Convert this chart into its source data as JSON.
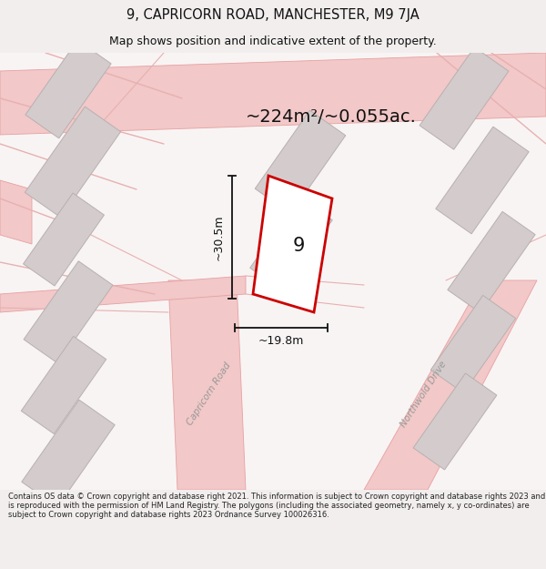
{
  "title": "9, CAPRICORN ROAD, MANCHESTER, M9 7JA",
  "subtitle": "Map shows position and indicative extent of the property.",
  "area_text": "~224m²/~0.055ac.",
  "dim_h": "~30.5m",
  "dim_w": "~19.8m",
  "property_number": "9",
  "footer": "Contains OS data © Crown copyright and database right 2021. This information is subject to Crown copyright and database rights 2023 and is reproduced with the permission of HM Land Registry. The polygons (including the associated geometry, namely x, y co-ordinates) are subject to Crown copyright and database rights 2023 Ordnance Survey 100026316.",
  "bg_color": "#f2eeee",
  "map_bg": "#f8f4f4",
  "road_color": "#f2c8c8",
  "road_stroke": "#e8a0a0",
  "building_fill": "#d4cccc",
  "building_stroke": "#b8b0b0",
  "plot_fill": "#ffffff",
  "plot_stroke": "#cc0000",
  "title_color": "#111111",
  "dim_color": "#111111",
  "road_label_color": "#999999",
  "footer_color": "#222222"
}
